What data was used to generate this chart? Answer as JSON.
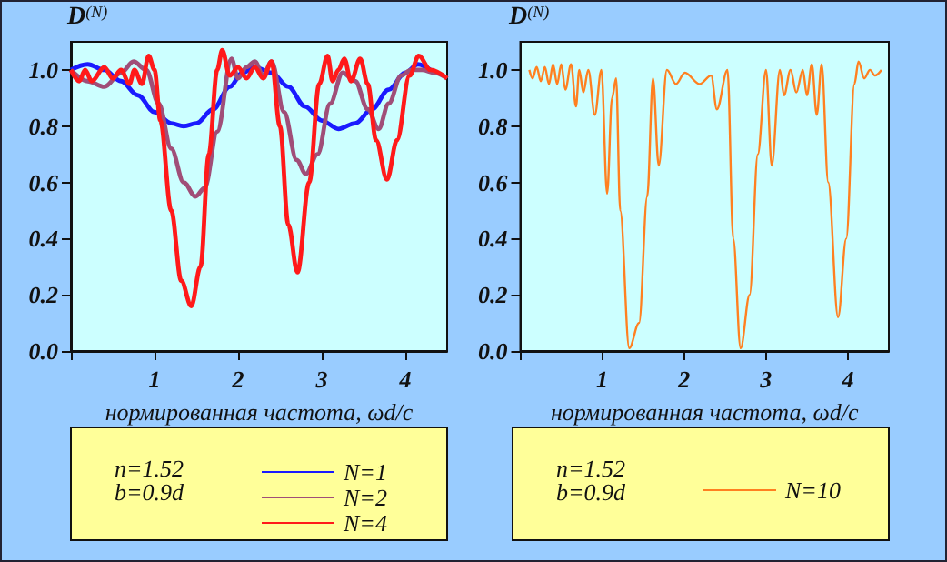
{
  "chart_data": [
    {
      "type": "line",
      "ylabel": "D$^{(N)}$",
      "xlabel": "нормированная частота, ωd/c",
      "xlim": [
        0,
        4.5
      ],
      "xticks": [
        {
          "value": 0,
          "label": null
        },
        1,
        2,
        3,
        4
      ],
      "ylim": [
        0,
        1.1
      ],
      "yticks": [
        {
          "value": 0,
          "label": "0.0"
        },
        {
          "value": 0.2,
          "label": "0.2"
        },
        {
          "value": 0.4,
          "label": "0.4"
        },
        {
          "value": 0.6,
          "label": "0.6"
        },
        {
          "value": 0.8,
          "label": "0.8"
        },
        {
          "value": 1,
          "label": "1.0"
        }
      ],
      "grid": false,
      "legend": "bottom",
      "annotations": [
        "n=1.52",
        "b=0.9d"
      ],
      "series": [
        {
          "name": "N=1",
          "color": "#1a1aff",
          "x": [
            0,
            0.2,
            0.4,
            0.6,
            0.8,
            1.0,
            1.2,
            1.35,
            1.5,
            1.7,
            1.9,
            2.05,
            2.2,
            2.4,
            2.6,
            2.8,
            3.0,
            3.2,
            3.4,
            3.6,
            3.8,
            4.0,
            4.15,
            4.3
          ],
          "values": [
            1.0,
            1.02,
            1.0,
            0.96,
            0.91,
            0.85,
            0.81,
            0.8,
            0.81,
            0.86,
            0.94,
            0.99,
            1.01,
            0.99,
            0.94,
            0.87,
            0.82,
            0.79,
            0.81,
            0.86,
            0.93,
            0.99,
            1.02,
            1.0
          ]
        },
        {
          "name": "N=2",
          "color": "#a04e78",
          "x": [
            0,
            0.2,
            0.4,
            0.6,
            0.75,
            0.9,
            1.05,
            1.2,
            1.35,
            1.49,
            1.6,
            1.75,
            1.92,
            2.0,
            2.1,
            2.2,
            2.3,
            2.4,
            2.55,
            2.7,
            2.81,
            2.95,
            3.1,
            3.25,
            3.4,
            3.55,
            3.68,
            3.8,
            3.95,
            4.07,
            4.2,
            4.35,
            4.5
          ],
          "values": [
            1.0,
            0.96,
            0.94,
            0.99,
            1.03,
            1.0,
            0.88,
            0.72,
            0.6,
            0.55,
            0.58,
            0.78,
            1.04,
            0.97,
            1.01,
            1.03,
            0.98,
            1.03,
            0.85,
            0.68,
            0.63,
            0.7,
            0.88,
            0.99,
            0.96,
            0.86,
            0.79,
            0.88,
            0.98,
            1.0,
            1.0,
            0.99,
            0.97
          ]
        },
        {
          "name": "N=4",
          "color": "#ff1a1a",
          "x": [
            0,
            0.1,
            0.17,
            0.25,
            0.4,
            0.5,
            0.6,
            0.7,
            0.76,
            0.85,
            0.93,
            1.0,
            1.07,
            1.2,
            1.32,
            1.44,
            1.55,
            1.65,
            1.75,
            1.81,
            1.9,
            2.0,
            2.1,
            2.2,
            2.3,
            2.4,
            2.5,
            2.6,
            2.71,
            2.85,
            2.97,
            3.07,
            3.13,
            3.2,
            3.27,
            3.35,
            3.46,
            3.55,
            3.65,
            3.78,
            3.9,
            4.05,
            4.16,
            4.3,
            4.5
          ],
          "values": [
            1.0,
            0.96,
            1.0,
            0.96,
            1.01,
            0.97,
            1.0,
            0.95,
            1.0,
            0.95,
            1.05,
            1.0,
            0.82,
            0.5,
            0.25,
            0.16,
            0.3,
            0.7,
            1.0,
            1.07,
            0.98,
            1.01,
            0.97,
            1.01,
            0.97,
            1.03,
            0.8,
            0.45,
            0.28,
            0.6,
            0.95,
            1.05,
            0.96,
            1.0,
            1.04,
            0.96,
            1.04,
            0.95,
            0.75,
            0.61,
            0.75,
            0.98,
            1.05,
            1.0,
            0.97
          ]
        }
      ]
    },
    {
      "type": "line",
      "ylabel": "D$^{(N)}$",
      "xlabel": "нормированная частота, ωd/c",
      "xlim": [
        0,
        4.5
      ],
      "xticks": [
        {
          "value": 0,
          "label": null
        },
        1,
        2,
        3,
        4
      ],
      "ylim": [
        0,
        1.1
      ],
      "yticks": [
        {
          "value": 0,
          "label": "0.0"
        },
        {
          "value": 0.2,
          "label": "0.2"
        },
        {
          "value": 0.4,
          "label": "0.4"
        },
        {
          "value": 0.6,
          "label": "0.6"
        },
        {
          "value": 0.8,
          "label": "0.8"
        },
        {
          "value": 1,
          "label": "1.0"
        }
      ],
      "grid": false,
      "legend": "bottom",
      "annotations": [
        "n=1.52",
        "b=0.9d"
      ],
      "series": [
        {
          "name": "N=10",
          "color": "#ff8020",
          "x": [
            0.11,
            0.15,
            0.2,
            0.25,
            0.3,
            0.35,
            0.4,
            0.45,
            0.5,
            0.55,
            0.62,
            0.68,
            0.72,
            0.77,
            0.83,
            0.91,
            0.99,
            1.06,
            1.12,
            1.17,
            1.22,
            1.33,
            1.45,
            1.55,
            1.62,
            1.69,
            1.79,
            1.9,
            2.01,
            2.19,
            2.33,
            2.4,
            2.53,
            2.6,
            2.69,
            2.8,
            2.9,
            3.0,
            3.07,
            3.17,
            3.22,
            3.3,
            3.37,
            3.45,
            3.5,
            3.56,
            3.62,
            3.68,
            3.76,
            3.88,
            3.98,
            4.08,
            4.13,
            4.2,
            4.27,
            4.33,
            4.41
          ],
          "values": [
            1.0,
            0.97,
            1.01,
            0.96,
            1.01,
            0.95,
            1.02,
            0.95,
            1.02,
            0.93,
            1.02,
            0.87,
            1.0,
            0.92,
            1.0,
            0.84,
            1.0,
            0.56,
            0.9,
            0.97,
            0.5,
            0.01,
            0.1,
            0.55,
            0.97,
            0.66,
            1.0,
            0.95,
            0.99,
            0.95,
            0.98,
            0.86,
            1.0,
            0.4,
            0.01,
            0.2,
            0.7,
            1.0,
            0.66,
            1.0,
            0.91,
            1.0,
            0.92,
            1.0,
            0.91,
            1.02,
            0.84,
            1.02,
            0.6,
            0.12,
            0.4,
            0.95,
            1.03,
            0.97,
            1.0,
            0.98,
            1.0
          ]
        }
      ]
    }
  ]
}
